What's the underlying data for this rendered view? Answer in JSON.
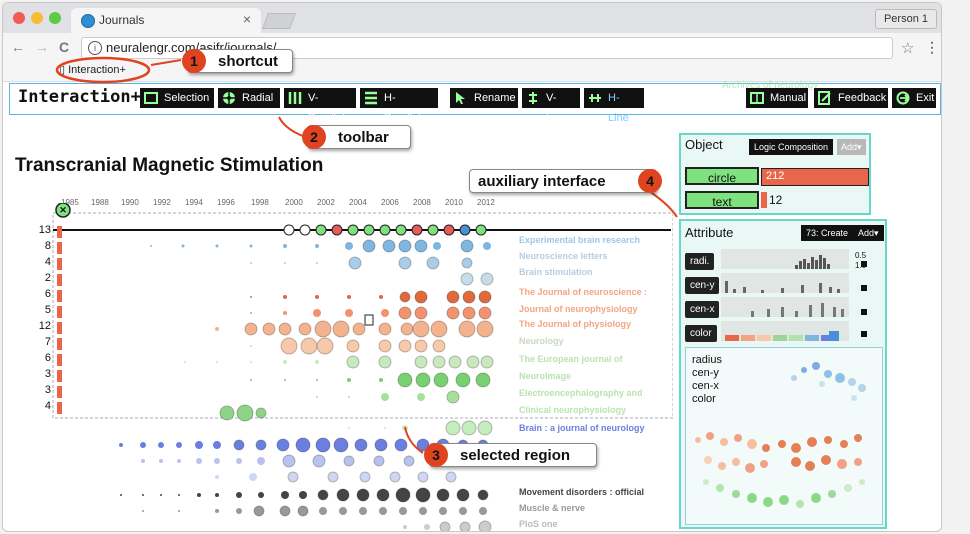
{
  "browser": {
    "tab_title": "Journals",
    "tab_close": "×",
    "profile": "Person 1",
    "url": "neuralengr.com/asifr/journals/",
    "bookmark": "Interaction+",
    "nav_back": "←",
    "nav_forward": "→",
    "nav_reload": "C",
    "info": "i",
    "star": "☆",
    "menu": "⋮"
  },
  "toolbar": {
    "app_name": "Interaction+",
    "left_buttons": [
      "Selection",
      "Radial",
      "V-Parallel",
      "H-Parallel"
    ],
    "mid_buttons": [
      "Rename",
      "V-Line",
      "H-Line"
    ],
    "right_buttons": [
      "Manual",
      "Feedback",
      "Exit"
    ],
    "faded_text": "Archives of neurology"
  },
  "callouts": [
    {
      "num": "1",
      "label": "shortcut"
    },
    {
      "num": "2",
      "label": "toolbar"
    },
    {
      "num": "3",
      "label": "selected region"
    },
    {
      "num": "4",
      "label": "auxiliary interface"
    }
  ],
  "chart": {
    "title": "Transcranial Magnetic Stimulation",
    "years": [
      "1985",
      "1988",
      "1990",
      "1992",
      "1994",
      "1996",
      "1998",
      "2000",
      "2002",
      "2004",
      "2006",
      "2008",
      "2010",
      "2012"
    ],
    "row_counts": [
      "13",
      "8",
      "4",
      "2",
      "6",
      "5",
      "12",
      "7",
      "6",
      "3",
      "3",
      "4"
    ],
    "journals": [
      "Experimental brain research",
      "Neuroscience letters",
      "Brain stimulation",
      "The Journal of neuroscience :",
      "Journal of neurophysiology",
      "The Journal of physiology",
      "Neurology",
      "The European journal of",
      "Neurolmage",
      "Electroencephalography and",
      "Clinical neurophysiology",
      "Brain : a journal of neurology",
      "Movement disorders : official",
      "Muscle & nerve",
      "PloS one"
    ]
  },
  "object_panel": {
    "title": "Object",
    "logic_btn": "Logic Composition",
    "add_btn": "Add▾",
    "items": [
      {
        "name": "circle",
        "count": "212",
        "fill": 1.0
      },
      {
        "name": "text",
        "count": "12",
        "fill": 0.06
      }
    ]
  },
  "attribute_panel": {
    "title": "Attribute",
    "create_btn": "73: Create",
    "add_btn": "Add▾",
    "attrs": [
      "radi.",
      "cen-y",
      "cen-x",
      "color"
    ],
    "radius_values": [
      "0.5",
      "1.0"
    ],
    "legend": [
      "radius",
      "cen-y",
      "cen-x",
      "color"
    ]
  },
  "colors": {
    "accent": "#57b6e8",
    "red": "#e8674a",
    "green": "#7ee37e",
    "blue": "#6b7fe0",
    "teal_panel": "#68d7c8"
  }
}
